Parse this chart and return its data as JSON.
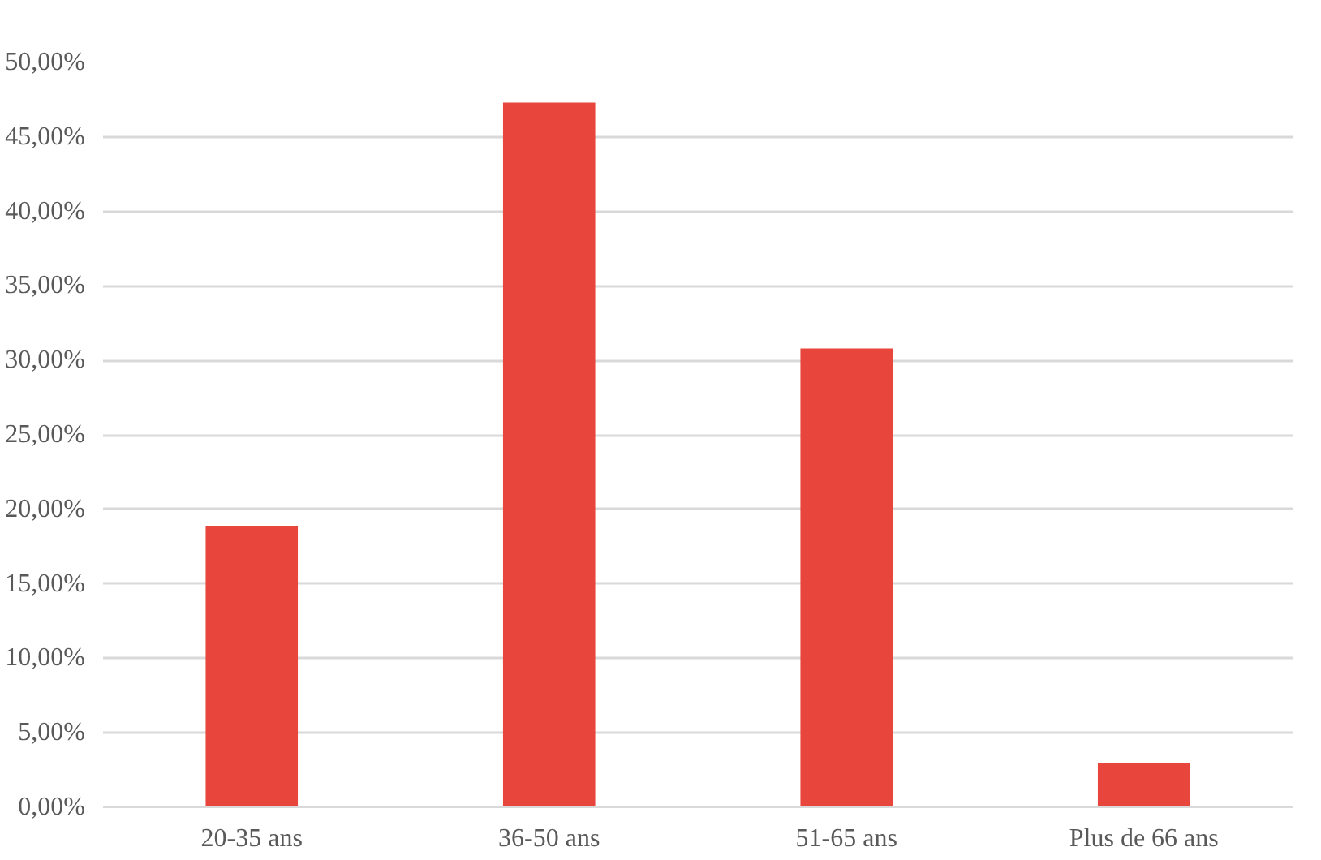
{
  "chart_data": {
    "type": "bar",
    "categories": [
      "20-35 ans",
      "36-50 ans",
      "51-65 ans",
      "Plus de 66 ans"
    ],
    "values": [
      18.9,
      47.3,
      30.8,
      3.0
    ],
    "color": "#e8453c",
    "ylim": [
      0,
      50
    ],
    "yticks": [
      {
        "value": 0,
        "label": "0,00%"
      },
      {
        "value": 5,
        "label": "5,00%"
      },
      {
        "value": 10,
        "label": "10,00%"
      },
      {
        "value": 15,
        "label": "15,00%"
      },
      {
        "value": 20,
        "label": "20,00%"
      },
      {
        "value": 25,
        "label": "25,00%"
      },
      {
        "value": 30,
        "label": "30,00%"
      },
      {
        "value": 35,
        "label": "35,00%"
      },
      {
        "value": 40,
        "label": "40,00%"
      },
      {
        "value": 45,
        "label": "45,00%"
      },
      {
        "value": 50,
        "label": "50,00%"
      }
    ],
    "grid": "y"
  }
}
